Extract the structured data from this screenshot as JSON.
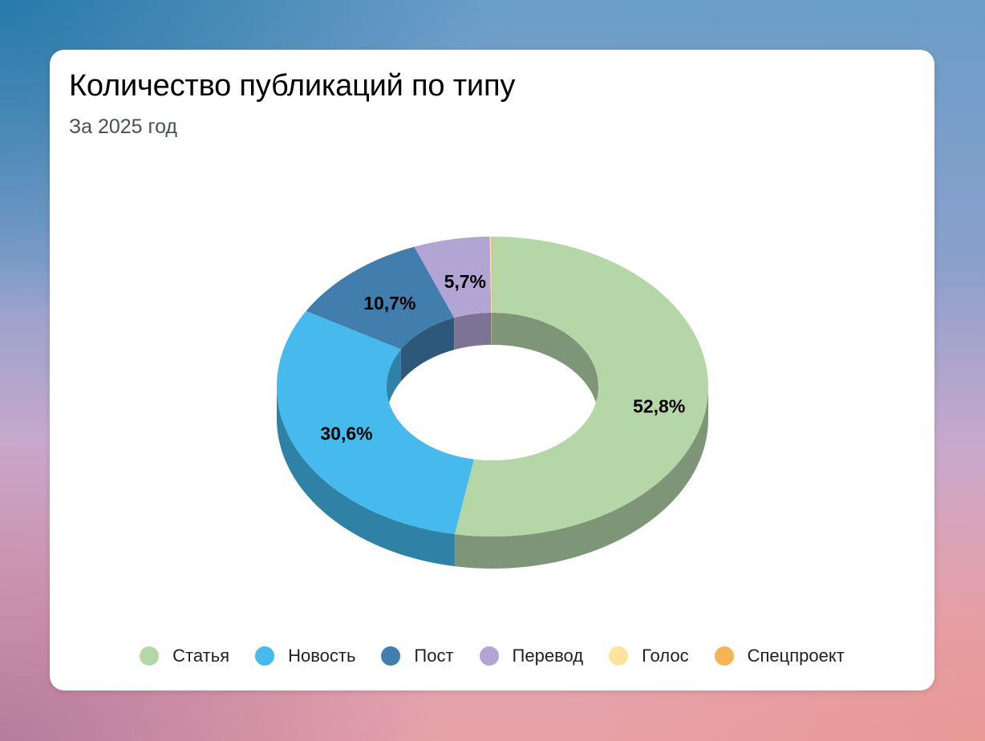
{
  "header": {
    "title": "Количество публикаций по типу",
    "subtitle": "За 2025 год"
  },
  "legend": [
    {
      "label": "Статья",
      "color": "#b5d7a8"
    },
    {
      "label": "Новость",
      "color": "#46b9ed"
    },
    {
      "label": "Пост",
      "color": "#417ead"
    },
    {
      "label": "Перевод",
      "color": "#b2a5d4"
    },
    {
      "label": "Голос",
      "color": "#fde49c"
    },
    {
      "label": "Спецпроект",
      "color": "#f8b355"
    }
  ],
  "chart_data": {
    "type": "pie",
    "variant": "3d-donut",
    "title": "Количество публикаций по типу",
    "subtitle": "За 2025 год",
    "categories": [
      "Статья",
      "Новость",
      "Пост",
      "Перевод",
      "Голос",
      "Спецпроект"
    ],
    "values": [
      52.8,
      30.6,
      10.7,
      5.7,
      0.1,
      0.1
    ],
    "unit": "%",
    "labels": [
      "52,8%",
      "30,6%",
      "10,7%",
      "5,7%",
      "",
      ""
    ],
    "colors": [
      "#b5d7a8",
      "#46b9ed",
      "#417ead",
      "#b2a5d4",
      "#fde49c",
      "#f8b355"
    ],
    "side_colors": [
      "#7e9677",
      "#2f81a6",
      "#2e5879",
      "#7d7394",
      "#b1a06d",
      "#ae7d3b"
    ],
    "start_angle_deg": 0,
    "direction": "clockwise",
    "legend_position": "bottom"
  }
}
